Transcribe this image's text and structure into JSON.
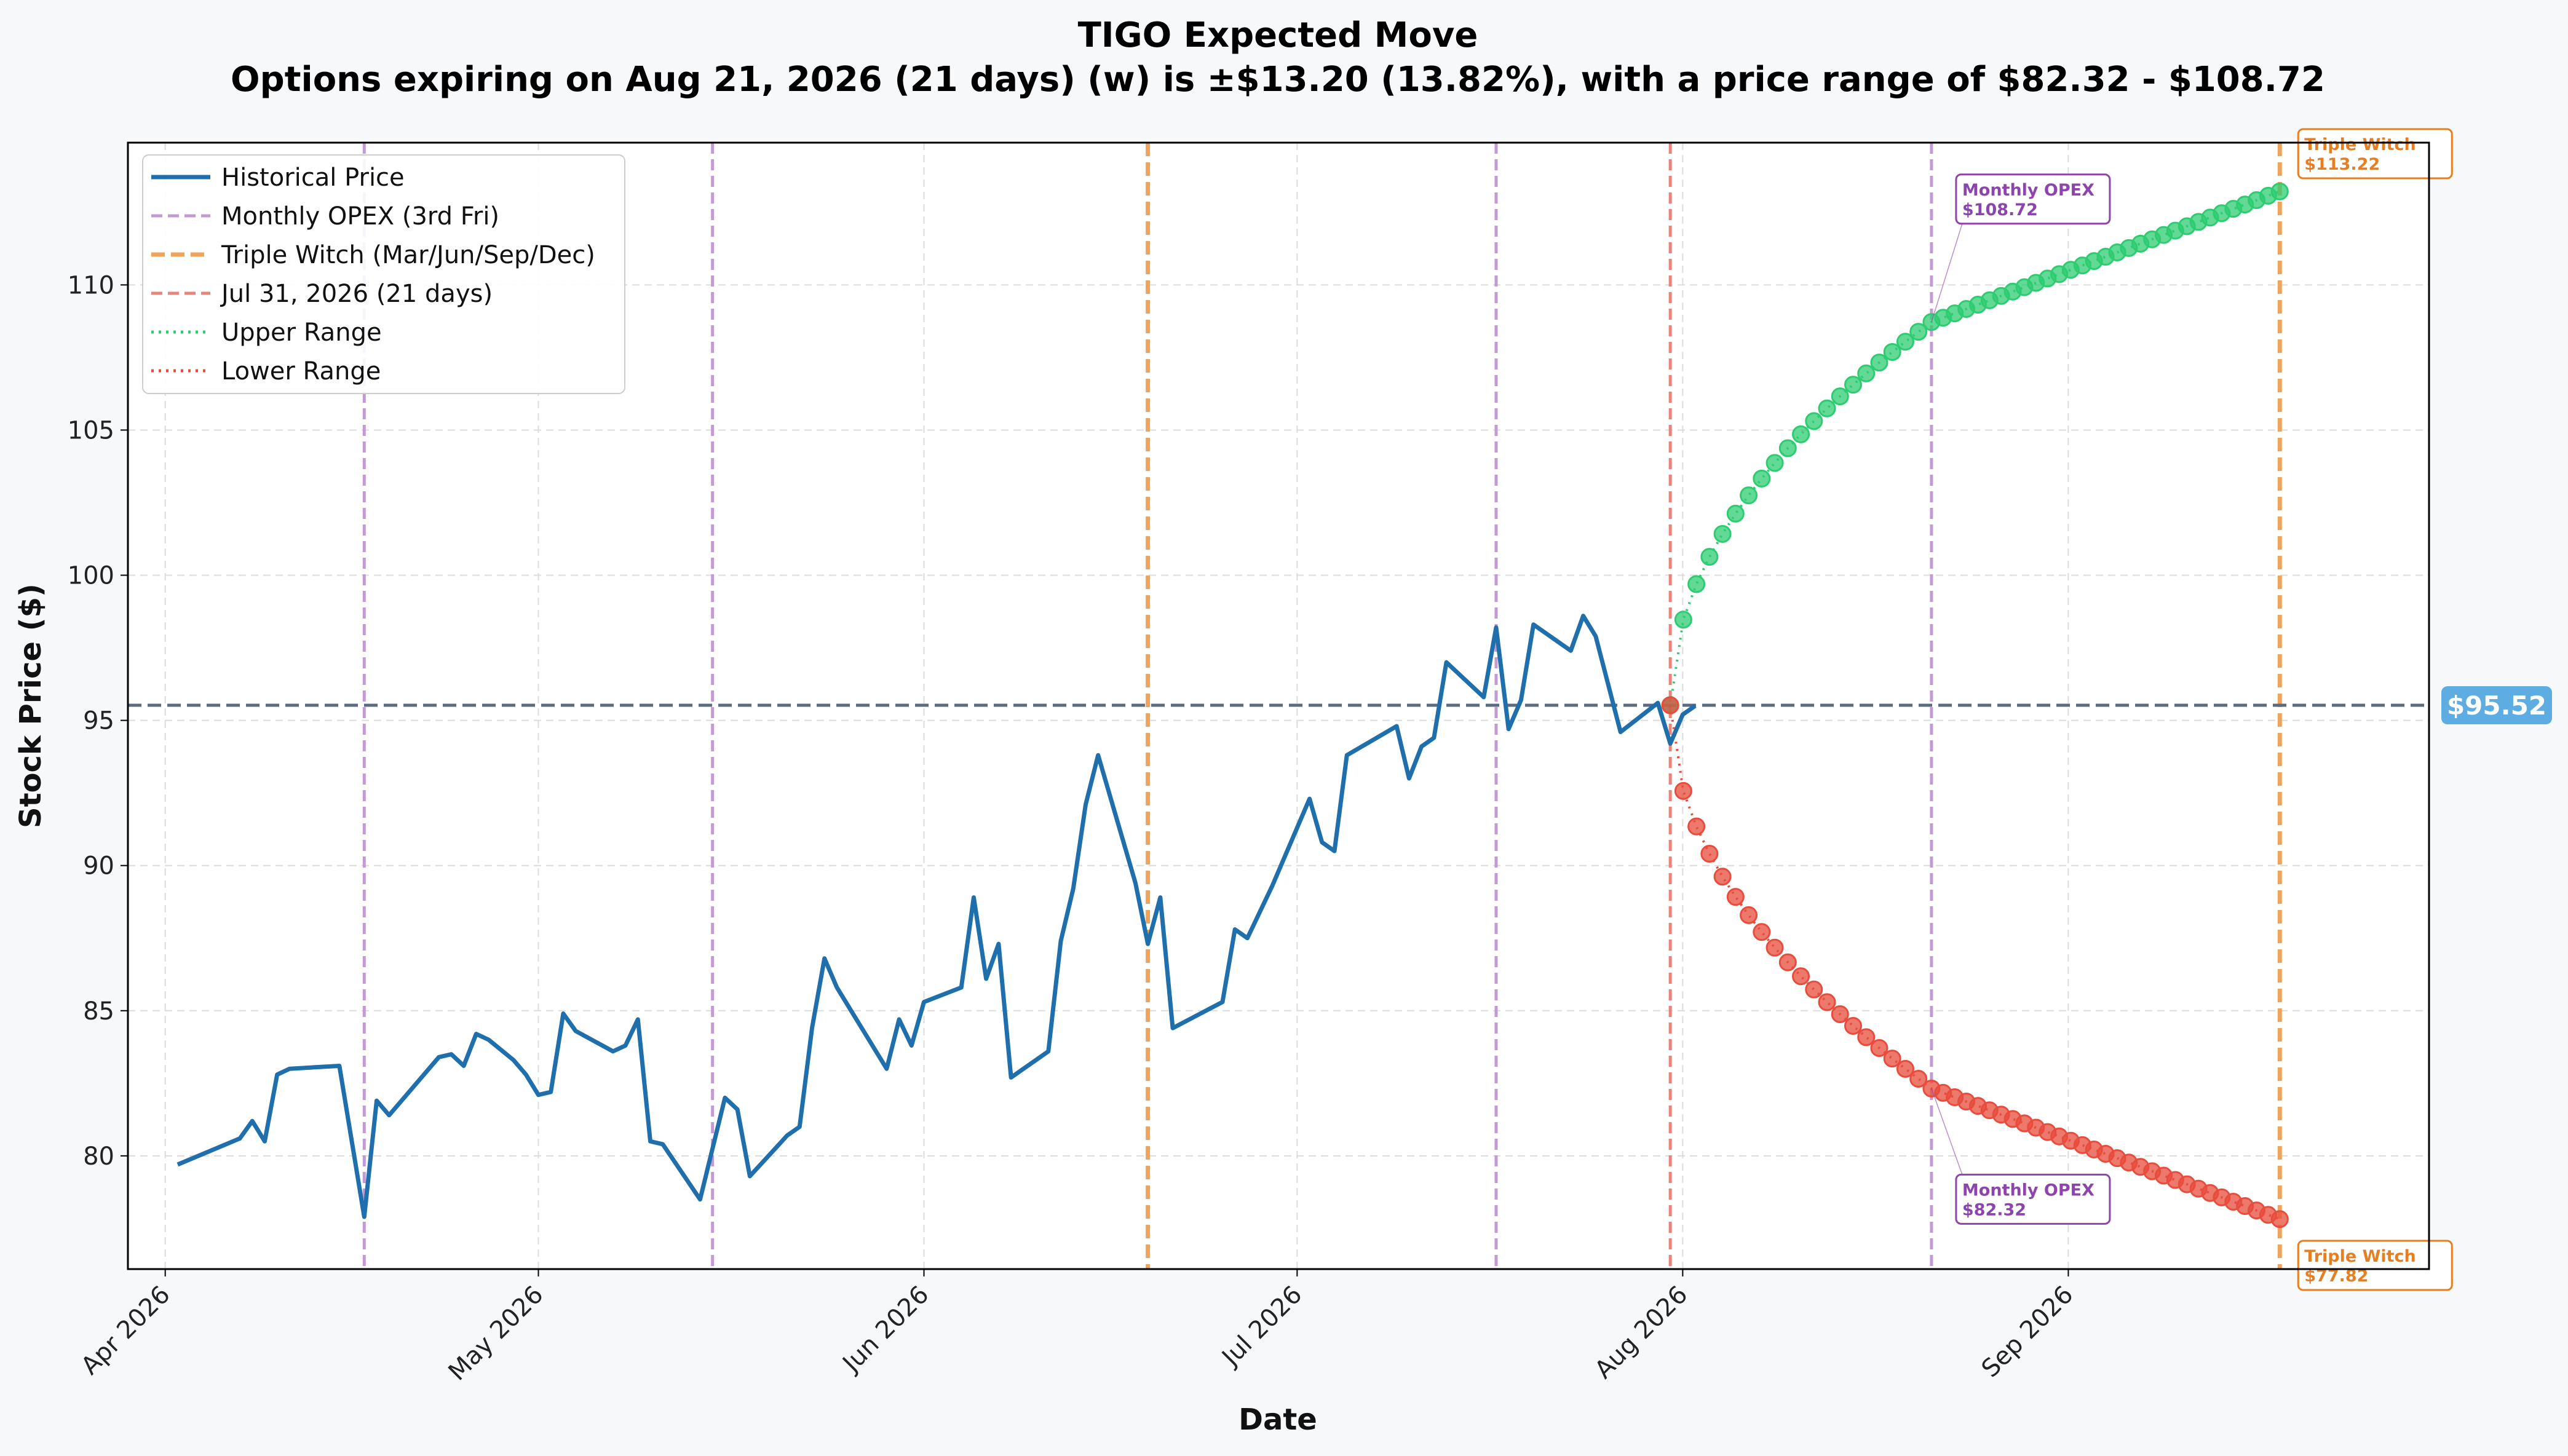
{
  "title": "TIGO Expected Move",
  "subtitle": "Options expiring on Aug 21, 2026 (21 days) (w) is ±$13.20 (13.82%), with a price range of $82.32 - $108.72",
  "chart_data": {
    "type": "line",
    "title": "TIGO Expected Move",
    "subtitle": "Options expiring on Aug 21, 2026 (21 days) (w) is ±$13.20 (13.82%), with a price range of $82.32 - $108.72",
    "xlabel": "Date",
    "ylabel": "Stock Price ($)",
    "x_range": [
      "2026-03-29",
      "2026-09-30"
    ],
    "ylim": [
      76.1,
      114.9
    ],
    "yticks": [
      80,
      85,
      90,
      95,
      100,
      105,
      110
    ],
    "xticks": [
      {
        "date": "2026-04-01",
        "label": "Apr 2026"
      },
      {
        "date": "2026-05-01",
        "label": "May 2026"
      },
      {
        "date": "2026-06-01",
        "label": "Jun 2026"
      },
      {
        "date": "2026-07-01",
        "label": "Jul 2026"
      },
      {
        "date": "2026-08-01",
        "label": "Aug 2026"
      },
      {
        "date": "2026-09-01",
        "label": "Sep 2026"
      }
    ],
    "grid": true,
    "legend_position": "top-left",
    "current_price": 95.52,
    "current_price_label": "$95.52",
    "colors": {
      "historical": "#1f6fad",
      "monthly_opex": "#c39bd3",
      "triple_witch": "#f0a35a",
      "expiry": "#e8847a",
      "upper": "#2ecc71",
      "lower": "#e74c3c",
      "current": "#5a6b80",
      "current_badge": "#5dade2"
    },
    "series": [
      {
        "name": "Historical Price",
        "points": [
          [
            "2026-04-02",
            79.7
          ],
          [
            "2026-04-07",
            80.6
          ],
          [
            "2026-04-08",
            81.2
          ],
          [
            "2026-04-09",
            80.5
          ],
          [
            "2026-04-10",
            82.8
          ],
          [
            "2026-04-11",
            83.0
          ],
          [
            "2026-04-15",
            83.1
          ],
          [
            "2026-04-17",
            77.9
          ],
          [
            "2026-04-18",
            81.9
          ],
          [
            "2026-04-19",
            81.4
          ],
          [
            "2026-04-23",
            83.4
          ],
          [
            "2026-04-24",
            83.5
          ],
          [
            "2026-04-25",
            83.1
          ],
          [
            "2026-04-26",
            84.2
          ],
          [
            "2026-04-27",
            84.0
          ],
          [
            "2026-04-29",
            83.3
          ],
          [
            "2026-04-30",
            82.8
          ],
          [
            "2026-05-01",
            82.1
          ],
          [
            "2026-05-02",
            82.2
          ],
          [
            "2026-05-03",
            84.9
          ],
          [
            "2026-05-04",
            84.3
          ],
          [
            "2026-05-07",
            83.6
          ],
          [
            "2026-05-08",
            83.8
          ],
          [
            "2026-05-09",
            84.7
          ],
          [
            "2026-05-10",
            80.5
          ],
          [
            "2026-05-11",
            80.4
          ],
          [
            "2026-05-14",
            78.5
          ],
          [
            "2026-05-16",
            82.0
          ],
          [
            "2026-05-17",
            81.6
          ],
          [
            "2026-05-18",
            79.3
          ],
          [
            "2026-05-21",
            80.7
          ],
          [
            "2026-05-22",
            81.0
          ],
          [
            "2026-05-23",
            84.4
          ],
          [
            "2026-05-24",
            86.8
          ],
          [
            "2026-05-25",
            85.8
          ],
          [
            "2026-05-29",
            83.0
          ],
          [
            "2026-05-30",
            84.7
          ],
          [
            "2026-05-31",
            83.8
          ],
          [
            "2026-06-01",
            85.3
          ],
          [
            "2026-06-04",
            85.8
          ],
          [
            "2026-06-05",
            88.9
          ],
          [
            "2026-06-06",
            86.1
          ],
          [
            "2026-06-07",
            87.3
          ],
          [
            "2026-06-08",
            82.7
          ],
          [
            "2026-06-11",
            83.6
          ],
          [
            "2026-06-12",
            87.4
          ],
          [
            "2026-06-13",
            89.2
          ],
          [
            "2026-06-14",
            92.1
          ],
          [
            "2026-06-15",
            93.8
          ],
          [
            "2026-06-18",
            89.4
          ],
          [
            "2026-06-19",
            87.3
          ],
          [
            "2026-06-20",
            88.9
          ],
          [
            "2026-06-21",
            84.4
          ],
          [
            "2026-06-25",
            85.3
          ],
          [
            "2026-06-26",
            87.8
          ],
          [
            "2026-06-27",
            87.5
          ],
          [
            "2026-06-29",
            89.3
          ],
          [
            "2026-07-02",
            92.3
          ],
          [
            "2026-07-03",
            90.8
          ],
          [
            "2026-07-04",
            90.5
          ],
          [
            "2026-07-05",
            93.8
          ],
          [
            "2026-07-09",
            94.8
          ],
          [
            "2026-07-10",
            93.0
          ],
          [
            "2026-07-11",
            94.1
          ],
          [
            "2026-07-12",
            94.4
          ],
          [
            "2026-07-13",
            97.0
          ],
          [
            "2026-07-16",
            95.8
          ],
          [
            "2026-07-17",
            98.2
          ],
          [
            "2026-07-18",
            94.7
          ],
          [
            "2026-07-19",
            95.7
          ],
          [
            "2026-07-20",
            98.3
          ],
          [
            "2026-07-23",
            97.4
          ],
          [
            "2026-07-24",
            98.6
          ],
          [
            "2026-07-25",
            97.9
          ],
          [
            "2026-07-27",
            94.6
          ],
          [
            "2026-07-30",
            95.6
          ],
          [
            "2026-07-31",
            94.2
          ],
          [
            "2026-08-01",
            95.2
          ],
          [
            "2026-08-02",
            95.5
          ]
        ]
      },
      {
        "name": "Monthly OPEX (3rd Fri)",
        "dates": [
          "2026-04-17",
          "2026-05-15",
          "2026-07-17",
          "2026-08-21"
        ]
      },
      {
        "name": "Triple Witch (Mar/Jun/Sep/Dec)",
        "dates": [
          "2026-06-19",
          "2026-09-18"
        ]
      },
      {
        "name": "Jul 31, 2026 (21 days)",
        "dates": [
          "2026-07-31"
        ]
      },
      {
        "name": "Upper Range",
        "start": [
          "2026-07-31",
          95.52
        ],
        "opex": [
          "2026-08-21",
          108.72
        ],
        "end": [
          "2026-09-18",
          113.22
        ]
      },
      {
        "name": "Lower Range",
        "start": [
          "2026-07-31",
          95.52
        ],
        "opex": [
          "2026-08-21",
          82.32
        ],
        "end": [
          "2026-09-18",
          77.82
        ]
      }
    ],
    "annotations": [
      {
        "kind": "opex",
        "label": "Monthly OPEX",
        "value": "$108.72",
        "date": "2026-08-21",
        "price": 108.72
      },
      {
        "kind": "opex",
        "label": "Monthly OPEX",
        "value": "$82.32",
        "date": "2026-08-21",
        "price": 82.32
      },
      {
        "kind": "witch",
        "label": "Triple Witch",
        "value": "$113.22",
        "date": "2026-09-18",
        "price": 113.22
      },
      {
        "kind": "witch",
        "label": "Triple Witch",
        "value": "$77.82",
        "date": "2026-09-18",
        "price": 77.82
      }
    ]
  }
}
